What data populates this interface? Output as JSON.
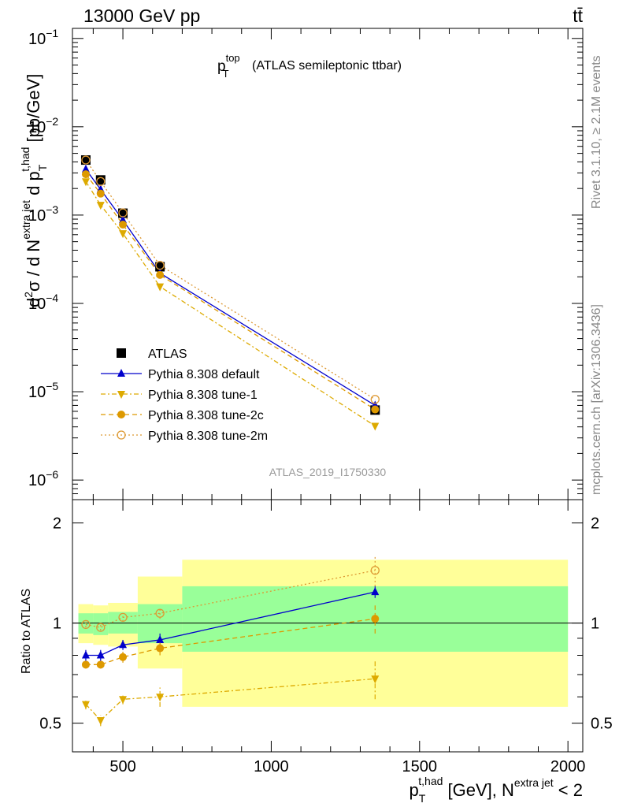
{
  "header": {
    "energy": "13000 GeV pp",
    "process": "tt̄"
  },
  "side_text": {
    "rivet": "Rivet 3.1.10, ≥ 2.1M events",
    "mcplots": "mcplots.cern.ch [arXiv:1306.3436]"
  },
  "chart_data": [
    {
      "type": "line",
      "panel": "main",
      "title": "(ATLAS semileptonic ttbar)",
      "title_math": {
        "p": "p",
        "sup": "top",
        "sub": "T"
      },
      "ylabel": "d²σ / d N^{extra jet} d p_T^{t,had} [pb/GeV]",
      "ylabel_parts": {
        "d1": "d",
        "sup2": "2",
        "sigma": "σ / d N",
        "sup_extra": "extra jet",
        "dp": " d p",
        "sub_T": "T",
        "sup_had": "t,had",
        "units": " [pb/GeV]"
      },
      "yscale": "log",
      "ylim": [
        6e-07,
        0.13
      ],
      "xlim": [
        330,
        2050
      ],
      "y_tick_labels": [
        {
          "base": "10",
          "exp": "−6",
          "value": 1e-06
        },
        {
          "base": "10",
          "exp": "−5",
          "value": 1e-05
        },
        {
          "base": "10",
          "exp": "−4",
          "value": 0.0001
        },
        {
          "base": "10",
          "exp": "−3",
          "value": 0.001
        },
        {
          "base": "10",
          "exp": "−2",
          "value": 0.01
        },
        {
          "base": "10",
          "exp": "−1",
          "value": 0.1
        }
      ],
      "watermark": "ATLAS_2019_I1750330",
      "legend_position": "lower-left",
      "x": [
        375,
        425,
        500,
        625,
        1350
      ],
      "series": [
        {
          "name": "ATLAS",
          "marker": "square",
          "color": "#000000",
          "line": "none",
          "values": [
            0.0042,
            0.0025,
            0.00105,
            0.00026,
            6.2e-06
          ]
        },
        {
          "name": "Pythia 8.308 default",
          "marker": "triangle-up",
          "color": "#0000cc",
          "line": "solid",
          "values": [
            0.0033,
            0.00195,
            0.00088,
            0.00022,
            7e-06
          ]
        },
        {
          "name": "Pythia 8.308 tune-1",
          "marker": "triangle-down",
          "color": "#ddaa00",
          "line": "dashdot",
          "values": [
            0.0024,
            0.0013,
            0.00062,
            0.000155,
            4.1e-06
          ]
        },
        {
          "name": "Pythia 8.308 tune-2c",
          "marker": "circle",
          "color": "#dd9900",
          "line": "dashed",
          "values": [
            0.0029,
            0.00175,
            0.00078,
            0.00021,
            6.3e-06
          ]
        },
        {
          "name": "Pythia 8.308 tune-2m",
          "marker": "circle-open",
          "color": "#dd9933",
          "line": "dotted",
          "values": [
            0.0042,
            0.0024,
            0.00106,
            0.00027,
            8.2e-06
          ]
        }
      ]
    },
    {
      "type": "line",
      "panel": "ratio",
      "ylabel": "Ratio to ATLAS",
      "yscale": "log",
      "ylim": [
        0.41,
        2.35
      ],
      "xlim": [
        330,
        2050
      ],
      "y_tick_labels": [
        {
          "label": "0.5",
          "value": 0.5
        },
        {
          "label": "1",
          "value": 1
        },
        {
          "label": "2",
          "value": 2
        }
      ],
      "x_tick_labels": [
        {
          "label": "500",
          "value": 500
        },
        {
          "label": "1000",
          "value": 1000
        },
        {
          "label": "1500",
          "value": 1500
        },
        {
          "label": "2000",
          "value": 2000
        }
      ],
      "xlabel": "p_T^{t,had} [GeV], N^{extra jet} < 2",
      "xlabel_parts": {
        "p": "p",
        "sub_T": "T",
        "sup_had": "t,had",
        "mid": " [GeV], N",
        "sup_extra": "extra jet",
        "end": " < 2"
      },
      "bins": [
        {
          "x": [
            350,
            400
          ],
          "stat": [
            0.93,
            1.07
          ],
          "total": [
            0.87,
            1.14
          ]
        },
        {
          "x": [
            400,
            450
          ],
          "stat": [
            0.92,
            1.07
          ],
          "total": [
            0.86,
            1.13
          ]
        },
        {
          "x": [
            450,
            550
          ],
          "stat": [
            0.93,
            1.08
          ],
          "total": [
            0.85,
            1.15
          ]
        },
        {
          "x": [
            550,
            700
          ],
          "stat": [
            0.87,
            1.14
          ],
          "total": [
            0.73,
            1.38
          ]
        },
        {
          "x": [
            700,
            2000
          ],
          "stat": [
            0.82,
            1.29
          ],
          "total": [
            0.56,
            1.55
          ]
        }
      ],
      "x": [
        375,
        425,
        500,
        625,
        1350
      ],
      "series": [
        {
          "name": "Pythia 8.308 default",
          "color": "#0000cc",
          "values": [
            0.8,
            0.8,
            0.86,
            0.89,
            1.24
          ],
          "errors": [
            0.03,
            0.03,
            0.03,
            0.04,
            0.05
          ]
        },
        {
          "name": "Pythia 8.308 tune-1",
          "color": "#ddaa00",
          "values": [
            0.57,
            0.51,
            0.59,
            0.6,
            0.68
          ],
          "errors": [
            0.02,
            0.02,
            0.02,
            0.04,
            0.09
          ]
        },
        {
          "name": "Pythia 8.308 tune-2c",
          "color": "#dd9900",
          "values": [
            0.75,
            0.75,
            0.79,
            0.84,
            1.03
          ],
          "errors": [
            0.02,
            0.02,
            0.03,
            0.04,
            0.1
          ]
        },
        {
          "name": "Pythia 8.308 tune-2m",
          "color": "#dd9933",
          "values": [
            0.99,
            0.97,
            1.04,
            1.07,
            1.44
          ],
          "errors": [
            0.02,
            0.02,
            0.03,
            0.04,
            0.15
          ]
        }
      ]
    }
  ]
}
